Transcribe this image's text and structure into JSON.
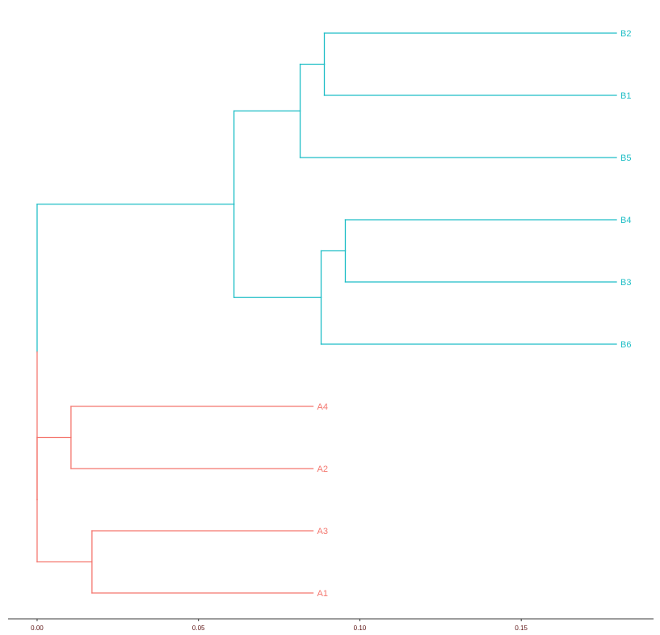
{
  "chart_data": {
    "type": "dendrogram",
    "orientation": "horizontal",
    "title": "",
    "xlabel": "",
    "ylabel": "",
    "xlim": [
      -0.009,
      0.191
    ],
    "x_ticks": [
      0,
      0.05,
      0.1,
      0.15
    ],
    "x_tick_labels": [
      "0.00",
      "0.05",
      "0.10",
      "0.15"
    ],
    "grid": false,
    "legend": "none",
    "colors": {
      "B": "#1fbec6",
      "A": "#f4766e",
      "axis": "#3a3a3a",
      "tick_text": "#5a1010"
    },
    "leaves": [
      {
        "label": "B2",
        "group": "B",
        "depth": 0.1795
      },
      {
        "label": "B1",
        "group": "B",
        "depth": 0.1795
      },
      {
        "label": "B5",
        "group": "B",
        "depth": 0.1795
      },
      {
        "label": "B4",
        "group": "B",
        "depth": 0.1795
      },
      {
        "label": "B3",
        "group": "B",
        "depth": 0.1795
      },
      {
        "label": "B6",
        "group": "B",
        "depth": 0.1795
      },
      {
        "label": "A4",
        "group": "A",
        "depth": 0.0855
      },
      {
        "label": "A2",
        "group": "A",
        "depth": 0.0855
      },
      {
        "label": "A3",
        "group": "A",
        "depth": 0.0855
      },
      {
        "label": "A1",
        "group": "A",
        "depth": 0.0855
      }
    ],
    "nodes": [
      {
        "id": "root",
        "depth": 0.0,
        "children": [
          "nB",
          "nA"
        ],
        "colors": [
          "B",
          "A"
        ]
      },
      {
        "id": "nB",
        "depth": 0.061,
        "children": [
          "nB251",
          "nB436"
        ],
        "colors": [
          "B",
          "B"
        ]
      },
      {
        "id": "nB251",
        "depth": 0.0815,
        "children": [
          "nB21",
          "B5"
        ],
        "colors": [
          "B",
          "B"
        ]
      },
      {
        "id": "nB21",
        "depth": 0.089,
        "children": [
          "B2",
          "B1"
        ],
        "colors": [
          "B",
          "B"
        ]
      },
      {
        "id": "nB436",
        "depth": 0.088,
        "children": [
          "nB43",
          "B6"
        ],
        "colors": [
          "B",
          "B"
        ]
      },
      {
        "id": "nB43",
        "depth": 0.0955,
        "children": [
          "B4",
          "B3"
        ],
        "colors": [
          "B",
          "B"
        ]
      },
      {
        "id": "nA",
        "depth": 0.0,
        "children": [
          "nA42",
          "nA31"
        ],
        "colors": [
          "A",
          "A"
        ]
      },
      {
        "id": "nA42",
        "depth": 0.0105,
        "children": [
          "A4",
          "A2"
        ],
        "colors": [
          "A",
          "A"
        ]
      },
      {
        "id": "nA31",
        "depth": 0.017,
        "children": [
          "A3",
          "A1"
        ],
        "colors": [
          "A",
          "A"
        ]
      }
    ],
    "root": "root"
  }
}
